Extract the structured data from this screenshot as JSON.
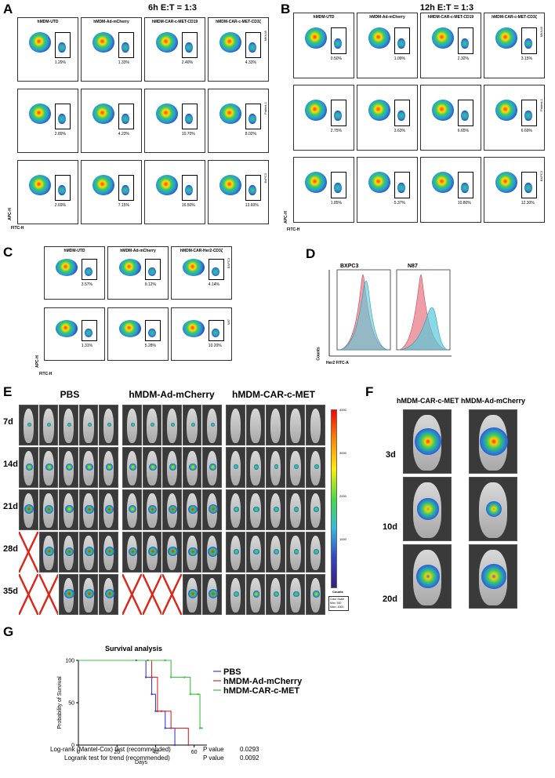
{
  "panels": {
    "A": {
      "letter": "A",
      "title": "6h E:T = 1:3",
      "cols": [
        "hMDM-UTD",
        "hMDM-Ad-mCherry",
        "hMDM-CAR-c-MET-CD19",
        "hMDM-CAR-c-MET-CD3ζ"
      ],
      "rows": [
        {
          "side": "MKN45",
          "pcts": [
            "1.29%",
            "1.33%",
            "2.40%",
            "4.33%"
          ]
        },
        {
          "side": "Patient-1",
          "pcts": [
            "2.89%",
            "4.23%",
            "10.70%",
            "8.02%"
          ]
        },
        {
          "side": "BxPC3",
          "pcts": [
            "2.69%",
            "7.15%",
            "16.50%",
            "13.60%"
          ]
        }
      ],
      "ylabel": "APC-H",
      "xlabel": "FITC-H"
    },
    "B": {
      "letter": "B",
      "title": "12h E:T = 1:3",
      "cols": [
        "hMDM-UTD",
        "hMDM-Ad-mCherry",
        "hMDM-CAR-c-MET-CD19",
        "hMDM-CAR-c-MET-CD3ζ"
      ],
      "rows": [
        {
          "side": "MKN45",
          "pcts": [
            "0.50%",
            "1.09%",
            "2.32%",
            "3.15%"
          ]
        },
        {
          "side": "Patient-1",
          "pcts": [
            "2.75%",
            "3.63%",
            "6.65%",
            "6.69%"
          ]
        },
        {
          "side": "BXPC3",
          "pcts": [
            "1.85%",
            "5.37%",
            "10.80%",
            "12.30%"
          ]
        }
      ],
      "ylabel": "APC-H",
      "xlabel": "FITC-H"
    },
    "C": {
      "letter": "C",
      "cols": [
        "hMDM-UTD",
        "hMDM-Ad-mCherry",
        "hMDM-CAR-Her2-CD3ζ"
      ],
      "rows": [
        {
          "side": "BXPC3",
          "pcts": [
            "3.57%",
            "9.12%",
            "4.14%"
          ]
        },
        {
          "side": "N87",
          "pcts": [
            "1.31%",
            "5.28%",
            "10.20%"
          ]
        }
      ],
      "ylabel": "APC-H",
      "xlabel": "FITC-H"
    },
    "D": {
      "letter": "D",
      "cols": [
        "BXPC3",
        "N87"
      ],
      "ylabel": "Counts",
      "xlabel": "Her2 FITC-A"
    },
    "E": {
      "letter": "E",
      "groups": [
        "PBS",
        "hMDM-Ad-mCherry",
        "hMDM-CAR-c-MET"
      ],
      "days": [
        "7d",
        "14d",
        "21d",
        "28d",
        "35d"
      ],
      "scale": {
        "ticks": [
          "4000",
          "3000",
          "2000",
          "1000"
        ],
        "unit": "Counts",
        "note1": "Color Scale",
        "note2": "Min= 500",
        "note3": "Max= 4000"
      }
    },
    "F": {
      "letter": "F",
      "groups": [
        "hMDM-CAR-c-MET",
        "hMDM-Ad-mCherry"
      ],
      "days": [
        "3d",
        "10d",
        "20d"
      ]
    },
    "G": {
      "letter": "G",
      "stat1_label": "Log-rank (Mantel-Cox) test (recommended)",
      "stat1_p": "P value",
      "stat1_v": "0.0293",
      "stat2_label": "Logrank test for trend (recommended)",
      "stat2_p": "P value",
      "stat2_v": "0.0092"
    }
  },
  "colors": {
    "PBS": "#3b3bd6",
    "mCherry": "#d62b2b",
    "CAR": "#3fbf3f",
    "gate": "#000000"
  },
  "chart_data": {
    "type": "line",
    "title": "Survival analysis",
    "xlabel": "Days",
    "ylabel": "Probability of Survival",
    "xlim": [
      0,
      65
    ],
    "ylim": [
      0,
      100
    ],
    "xticks": [
      "0",
      "20",
      "40",
      "60"
    ],
    "yticks": [
      "0",
      "50",
      "100"
    ],
    "legend_position": "right",
    "series": [
      {
        "name": "PBS",
        "color": "#3b3bd6",
        "x": [
          0,
          30,
          35,
          38,
          40,
          45,
          50
        ],
        "y": [
          100,
          100,
          80,
          60,
          40,
          20,
          0
        ]
      },
      {
        "name": "hMDM-Ad-mCherry",
        "color": "#d62b2b",
        "x": [
          0,
          36,
          38,
          41,
          43,
          48,
          57
        ],
        "y": [
          100,
          100,
          80,
          40,
          40,
          20,
          0
        ]
      },
      {
        "name": "hMDM-CAR-c-MET",
        "color": "#3fbf3f",
        "x": [
          0,
          45,
          48,
          55,
          58,
          62,
          63,
          64
        ],
        "y": [
          100,
          100,
          80,
          80,
          60,
          60,
          20,
          20
        ]
      }
    ]
  }
}
